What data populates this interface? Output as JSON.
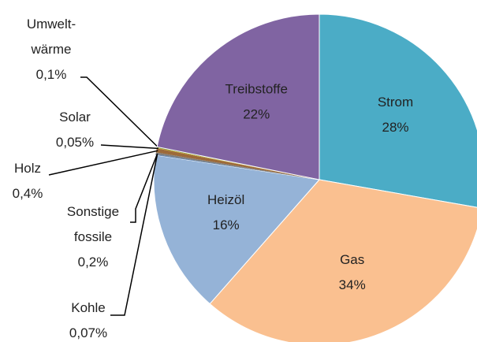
{
  "chart_data": {
    "type": "pie",
    "categories": [
      "Strom",
      "Gas",
      "Heizöl",
      "Kohle",
      "Sonstige fossile",
      "Holz",
      "Solar",
      "Umwelt-wärme",
      "Treibstoffe"
    ],
    "values": [
      28,
      34,
      16,
      0.07,
      0.2,
      0.4,
      0.05,
      0.1,
      22
    ],
    "value_labels": [
      "28%",
      "34%",
      "16%",
      "0,07%",
      "0,2%",
      "0,4%",
      "0,05%",
      "0,1%",
      "22%"
    ],
    "colors": [
      "#4bacc6",
      "#fac090",
      "#95b3d7",
      "#4f81bd",
      "#7f7f7f",
      "#9c6a3a",
      "#d4a017",
      "#77933c",
      "#8064a2"
    ]
  }
}
